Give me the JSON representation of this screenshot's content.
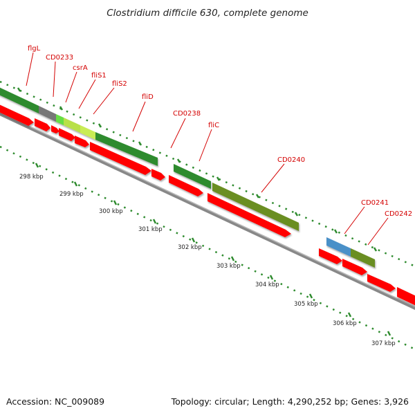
{
  "title": "Clostridium difficile 630, complete genome",
  "accession": "Accession: NC_009089",
  "summary": "Topology: circular; Length: 4,290,252 bp; Genes: 3,926",
  "colors": {
    "label_red": "#d40000",
    "cds_red": "#ff0000",
    "gene_green": "#2e8b2e",
    "gene_olive": "#6b8e23",
    "gene_blue": "#4a90c8",
    "gene_gray": "#777777",
    "gene_lime": "#66dd44",
    "gene_yellowgreen": "#b8e04a",
    "dot_green": "#2e8b2e",
    "backbone": "#888888"
  },
  "gene_labels": [
    "flgL",
    "CD0233",
    "csrA",
    "fliS1",
    "fliS2",
    "fliD",
    "CD0238",
    "fliC",
    "CD0240",
    "CD0241",
    "CD0242"
  ],
  "scale_ticks": [
    "298 kbp",
    "299 kbp",
    "300 kbp",
    "301 kbp",
    "302 kbp",
    "303 kbp",
    "304 kbp",
    "305 kbp",
    "306 kbp",
    "307 kbp"
  ]
}
